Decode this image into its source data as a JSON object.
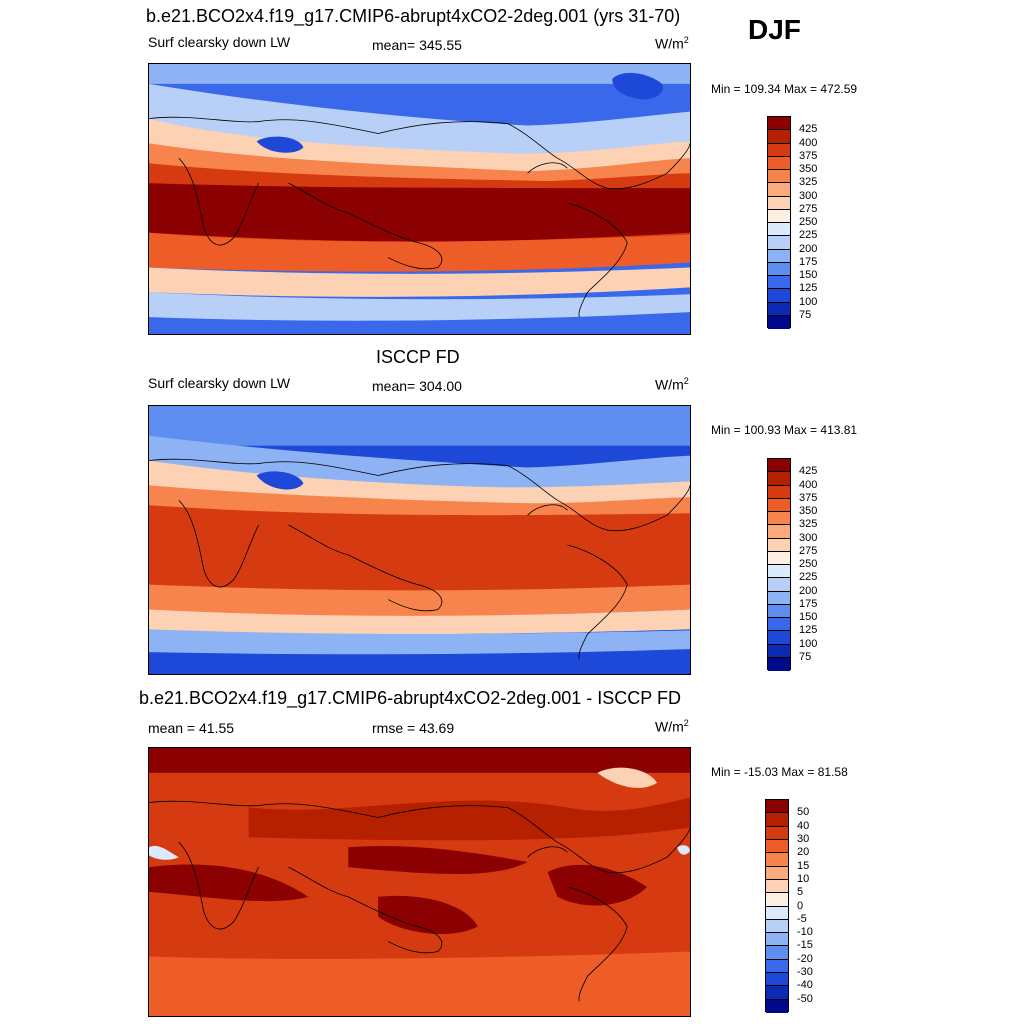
{
  "season": "DJF",
  "panels": [
    {
      "title": "b.e21.BCO2x4.f19_g17.CMIP6-abrupt4xCO2-2deg.001 (yrs 31-70)",
      "left_label": "Surf clearsky down LW",
      "center_label": "mean= 345.55",
      "units_base": "W/m",
      "units_exp": "2",
      "minmax": "Min = 109.34 Max = 472.59",
      "colorbar": {
        "colors": [
          "#8b0000",
          "#b52000",
          "#d63a10",
          "#ee5c28",
          "#f6844c",
          "#fbaa7e",
          "#fdd1b4",
          "#fdf0e2",
          "#ddeafb",
          "#b8d0f7",
          "#8db3f5",
          "#5d8ef0",
          "#3a68ea",
          "#1e48d8",
          "#0d2ab4",
          "#00098a"
        ],
        "labels": [
          "425",
          "400",
          "375",
          "350",
          "325",
          "300",
          "275",
          "250",
          "225",
          "200",
          "175",
          "150",
          "125",
          "100",
          "75"
        ]
      }
    },
    {
      "title": "ISCCP FD",
      "left_label": "Surf clearsky down LW",
      "center_label": "mean= 304.00",
      "units_base": "W/m",
      "units_exp": "2",
      "minmax": "Min = 100.93 Max = 413.81",
      "colorbar": {
        "colors": [
          "#8b0000",
          "#b52000",
          "#d63a10",
          "#ee5c28",
          "#f6844c",
          "#fbaa7e",
          "#fdd1b4",
          "#fdf0e2",
          "#ddeafb",
          "#b8d0f7",
          "#8db3f5",
          "#5d8ef0",
          "#3a68ea",
          "#1e48d8",
          "#0d2ab4",
          "#00098a"
        ],
        "labels": [
          "425",
          "400",
          "375",
          "350",
          "325",
          "300",
          "275",
          "250",
          "225",
          "200",
          "175",
          "150",
          "125",
          "100",
          "75"
        ]
      }
    },
    {
      "title": "b.e21.BCO2x4.f19_g17.CMIP6-abrupt4xCO2-2deg.001 - ISCCP FD",
      "left_label": "mean =  41.55",
      "center_label": "rmse =  43.69",
      "units_base": "W/m",
      "units_exp": "2",
      "minmax": "Min = -15.03 Max =  81.58",
      "colorbar": {
        "colors": [
          "#8b0000",
          "#b52000",
          "#d63a10",
          "#ee5c28",
          "#f6844c",
          "#fbaa7e",
          "#fdd1b4",
          "#fdf0e2",
          "#ddeafb",
          "#b8d0f7",
          "#8db3f5",
          "#5d8ef0",
          "#3a68ea",
          "#1e48d8",
          "#0d2ab4",
          "#00098a"
        ],
        "labels": [
          "50",
          "40",
          "30",
          "20",
          "15",
          "10",
          "5",
          "0",
          "-5",
          "-10",
          "-15",
          "-20",
          "-30",
          "-40",
          "-50"
        ]
      }
    }
  ]
}
